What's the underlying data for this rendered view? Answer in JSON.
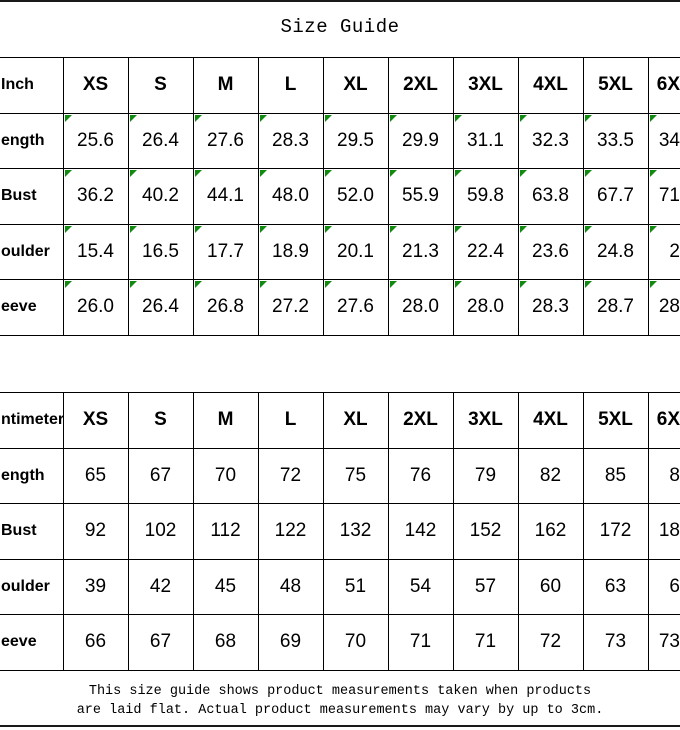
{
  "title": "Size Guide",
  "colors": {
    "background": "#ffffff",
    "text": "#000000",
    "table_border": "#000000",
    "flag_triangle": "#118a11",
    "divider_line": "#1a1a1a"
  },
  "table_inch": {
    "unit_label": "Inch",
    "sizes": [
      "XS",
      "S",
      "M",
      "L",
      "XL",
      "2XL",
      "3XL",
      "4XL",
      "5XL",
      "6X"
    ],
    "rows": [
      {
        "label": "ength",
        "values": [
          "25.6",
          "26.4",
          "27.6",
          "28.3",
          "29.5",
          "29.9",
          "31.1",
          "32.3",
          "33.5",
          "34"
        ]
      },
      {
        "label": "Bust",
        "values": [
          "36.2",
          "40.2",
          "44.1",
          "48.0",
          "52.0",
          "55.9",
          "59.8",
          "63.8",
          "67.7",
          "71"
        ]
      },
      {
        "label": "oulder",
        "values": [
          "15.4",
          "16.5",
          "17.7",
          "18.9",
          "20.1",
          "21.3",
          "22.4",
          "23.6",
          "24.8",
          "2"
        ]
      },
      {
        "label": "eeve",
        "values": [
          "26.0",
          "26.4",
          "26.8",
          "27.2",
          "27.6",
          "28.0",
          "28.0",
          "28.3",
          "28.7",
          "28"
        ]
      }
    ]
  },
  "table_cm": {
    "unit_label": "ntimeter",
    "sizes": [
      "XS",
      "S",
      "M",
      "L",
      "XL",
      "2XL",
      "3XL",
      "4XL",
      "5XL",
      "6X"
    ],
    "rows": [
      {
        "label": "ength",
        "values": [
          "65",
          "67",
          "70",
          "72",
          "75",
          "76",
          "79",
          "82",
          "85",
          "8"
        ]
      },
      {
        "label": "Bust",
        "values": [
          "92",
          "102",
          "112",
          "122",
          "132",
          "142",
          "152",
          "162",
          "172",
          "18"
        ]
      },
      {
        "label": "oulder",
        "values": [
          "39",
          "42",
          "45",
          "48",
          "51",
          "54",
          "57",
          "60",
          "63",
          "6"
        ]
      },
      {
        "label": "eeve",
        "values": [
          "66",
          "67",
          "68",
          "69",
          "70",
          "71",
          "71",
          "72",
          "73",
          "73"
        ]
      }
    ]
  },
  "footer": {
    "line1": "This size guide shows product measurements taken when products",
    "line2": "are laid flat. Actual product measurements may vary by up to 3cm."
  }
}
